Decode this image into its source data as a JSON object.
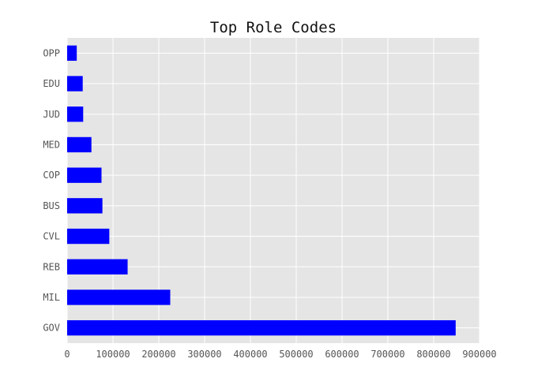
{
  "chart_data": {
    "type": "bar",
    "orientation": "horizontal",
    "title": "Top Role Codes",
    "xlabel": "",
    "ylabel": "",
    "categories": [
      "GOV",
      "MIL",
      "REB",
      "CVL",
      "BUS",
      "COP",
      "MED",
      "JUD",
      "EDU",
      "OPP"
    ],
    "values": [
      848000,
      225000,
      132000,
      92000,
      77000,
      75000,
      53000,
      35000,
      34000,
      21000
    ],
    "xlim": [
      0,
      900000
    ],
    "xticks": [
      "0",
      "100000",
      "200000",
      "300000",
      "400000",
      "500000",
      "600000",
      "700000",
      "800000",
      "900000"
    ],
    "grid": true,
    "legend": "none",
    "bar_color": "#0000ff",
    "background_color": "#e5e5e5"
  }
}
